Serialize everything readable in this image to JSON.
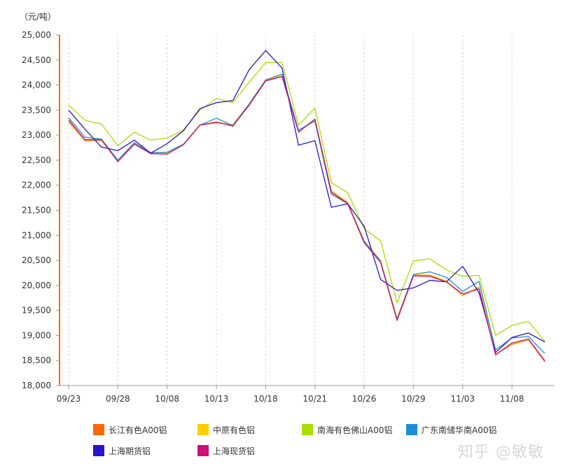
{
  "chart_data": {
    "type": "line",
    "unit_label": "（元/吨）",
    "ylim": [
      18000,
      25000
    ],
    "y_ticks": [
      18000,
      18500,
      19000,
      19500,
      20000,
      20500,
      21000,
      21500,
      22000,
      22500,
      23000,
      23500,
      24000,
      24500,
      25000
    ],
    "y_tick_labels": [
      "18,000",
      "18,500",
      "19,000",
      "19,500",
      "20,000",
      "20,500",
      "21,000",
      "21,500",
      "22,000",
      "22,500",
      "23,000",
      "23,500",
      "24,000",
      "24,500",
      "25,000"
    ],
    "x_tick_labels": [
      "09/23",
      "09/28",
      "10/08",
      "10/13",
      "10/18",
      "10/21",
      "10/26",
      "10/29",
      "11/03",
      "11/08"
    ],
    "x_tick_positions": [
      0,
      3,
      6,
      9,
      12,
      15,
      18,
      21,
      24,
      27
    ],
    "grid": "vertical-dashed",
    "legend_position": "bottom",
    "series": [
      {
        "name": "长江有色A00铝",
        "color": "#ff6600",
        "values": [
          23270,
          22890,
          22900,
          22480,
          22830,
          22630,
          22630,
          22810,
          23200,
          23250,
          23200,
          23620,
          24100,
          24180,
          23070,
          23300,
          21880,
          21650,
          20880,
          20490,
          19340,
          20200,
          20200,
          20080,
          19800,
          19960,
          18620,
          18820,
          18910,
          18480
        ]
      },
      {
        "name": "中原有色铝",
        "color": "#ffcc00",
        "values": [
          23300,
          22910,
          22920,
          22490,
          22840,
          22640,
          22640,
          22820,
          23210,
          23260,
          23210,
          23630,
          24110,
          24190,
          23080,
          23310,
          21890,
          21660,
          20890,
          20500,
          19350,
          20210,
          20210,
          20090,
          19810,
          19970,
          18630,
          18830,
          18920,
          18500
        ]
      },
      {
        "name": "南海有色佛山A00铝",
        "color": "#aadd00",
        "values": [
          23600,
          23300,
          23220,
          22790,
          23060,
          22900,
          22940,
          23110,
          23500,
          23730,
          23650,
          24060,
          24450,
          24450,
          23200,
          23540,
          22050,
          21850,
          21130,
          20890,
          19650,
          20490,
          20530,
          20310,
          20180,
          20200,
          19000,
          19200,
          19280,
          18880
        ]
      },
      {
        "name": "广东南储华南A00铝",
        "color": "#1a8fd6",
        "values": [
          23350,
          22960,
          22920,
          22500,
          22850,
          22650,
          22660,
          22820,
          23200,
          23340,
          23190,
          23620,
          24100,
          24220,
          23100,
          23280,
          21820,
          21630,
          20880,
          20480,
          19320,
          20220,
          20270,
          20160,
          19880,
          20080,
          18710,
          18950,
          18980,
          18640
        ]
      },
      {
        "name": "上海期货铝",
        "color": "#2a14c8",
        "values": [
          23500,
          23120,
          22760,
          22690,
          22900,
          22640,
          22830,
          23090,
          23530,
          23650,
          23690,
          24310,
          24690,
          24340,
          22800,
          22890,
          21560,
          21630,
          21180,
          20120,
          19900,
          19950,
          20100,
          20070,
          20380,
          19850,
          18660,
          18960,
          19050,
          18870
        ]
      },
      {
        "name": "上海现货铝",
        "color": "#cc1177",
        "values": [
          23310,
          22910,
          22910,
          22470,
          22820,
          22630,
          22620,
          22810,
          23200,
          23260,
          23180,
          23600,
          24080,
          24170,
          23060,
          23320,
          21860,
          21630,
          20850,
          20460,
          19300,
          20190,
          20180,
          20070,
          19830,
          19930,
          18610,
          18850,
          18930,
          18490
        ]
      }
    ]
  },
  "watermark": "知乎 @敏敏"
}
